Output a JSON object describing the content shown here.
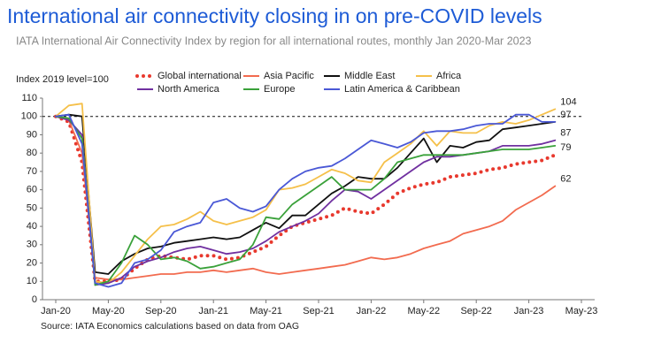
{
  "chart_data": {
    "type": "line",
    "title": "International air connectivity closing in on pre-COVID levels",
    "subtitle": "IATA International Air Connectivity Index by region for all international routes, monthly Jan 2020-Mar 2023",
    "y_label": "Index 2019 level=100",
    "source": "Source: IATA Economics calculations based on data from OAG",
    "categories": [
      "Jan-20",
      null,
      null,
      null,
      "May-20",
      null,
      null,
      null,
      "Sep-20",
      null,
      null,
      null,
      "Jan-21",
      null,
      null,
      null,
      "May-21",
      null,
      null,
      null,
      "Sep-21",
      null,
      null,
      null,
      "Jan-22",
      null,
      null,
      null,
      "May-22",
      null,
      null,
      null,
      "Sep-22",
      null,
      null,
      null,
      "Jan-23",
      null,
      null,
      null,
      "May-23"
    ],
    "ylim": [
      0,
      110
    ],
    "yticks": [
      0,
      10,
      20,
      30,
      40,
      50,
      60,
      70,
      80,
      90,
      100,
      110
    ],
    "reference_line": 100,
    "series": [
      {
        "name": "Global international",
        "color": "#e8392e",
        "dotted": true,
        "end_label": 79,
        "values": [
          100,
          97,
          75,
          10,
          10,
          11,
          17,
          22,
          24,
          23,
          22,
          24,
          24,
          22,
          23,
          26,
          29,
          35,
          40,
          42,
          44,
          46,
          50,
          48,
          47,
          52,
          58,
          61,
          63,
          64,
          67,
          68,
          69,
          71,
          72,
          74,
          75,
          76,
          79,
          null,
          null
        ]
      },
      {
        "name": "Asia Pacific",
        "color": "#f26b4f",
        "end_label": 62,
        "values": [
          100,
          98,
          80,
          12,
          11,
          11,
          12,
          13,
          14,
          14,
          15,
          15,
          16,
          15,
          16,
          17,
          15,
          14,
          15,
          16,
          17,
          18,
          19,
          21,
          23,
          22,
          23,
          25,
          28,
          30,
          32,
          36,
          38,
          40,
          43,
          49,
          53,
          57,
          62,
          null,
          null
        ]
      },
      {
        "name": "Middle East",
        "color": "#111111",
        "end_label": 97,
        "values": [
          100,
          101,
          100,
          15,
          14,
          21,
          25,
          28,
          29,
          31,
          32,
          33,
          34,
          33,
          34,
          38,
          42,
          39,
          46,
          46,
          52,
          58,
          62,
          67,
          66,
          66,
          72,
          80,
          88,
          75,
          84,
          83,
          86,
          87,
          93,
          94,
          95,
          96,
          97,
          null,
          null
        ]
      },
      {
        "name": "Africa",
        "color": "#f5c04a",
        "end_label": 104,
        "values": [
          100,
          106,
          107,
          10,
          9,
          15,
          24,
          33,
          40,
          41,
          44,
          48,
          43,
          41,
          43,
          45,
          49,
          60,
          61,
          63,
          67,
          71,
          69,
          65,
          64,
          75,
          80,
          85,
          92,
          84,
          92,
          91,
          91,
          95,
          97,
          96,
          98,
          101,
          104,
          null,
          null
        ]
      },
      {
        "name": "North America",
        "color": "#7030a0",
        "end_label": 87,
        "values": [
          100,
          98,
          90,
          8,
          9,
          12,
          18,
          21,
          23,
          26,
          28,
          29,
          27,
          25,
          26,
          28,
          32,
          37,
          40,
          43,
          47,
          54,
          60,
          59,
          55,
          60,
          65,
          70,
          75,
          78,
          78,
          79,
          80,
          81,
          84,
          84,
          84,
          85,
          87,
          null,
          null
        ]
      },
      {
        "name": "Europe",
        "color": "#3aa13a",
        "values": [
          100,
          99,
          88,
          8,
          10,
          20,
          35,
          30,
          22,
          23,
          21,
          17,
          18,
          20,
          22,
          30,
          45,
          44,
          52,
          57,
          62,
          67,
          60,
          60,
          60,
          66,
          75,
          77,
          79,
          79,
          79,
          79,
          80,
          81,
          82,
          82,
          82,
          83,
          84,
          null,
          null
        ]
      },
      {
        "name": "Latin America & Caribbean",
        "color": "#4a58d6",
        "values": [
          100,
          101,
          85,
          9,
          7,
          9,
          20,
          22,
          27,
          37,
          40,
          42,
          53,
          55,
          50,
          48,
          51,
          60,
          66,
          70,
          72,
          73,
          77,
          82,
          87,
          85,
          83,
          86,
          91,
          92,
          92,
          93,
          95,
          96,
          96,
          101,
          101,
          97,
          97,
          null,
          null
        ]
      }
    ]
  }
}
